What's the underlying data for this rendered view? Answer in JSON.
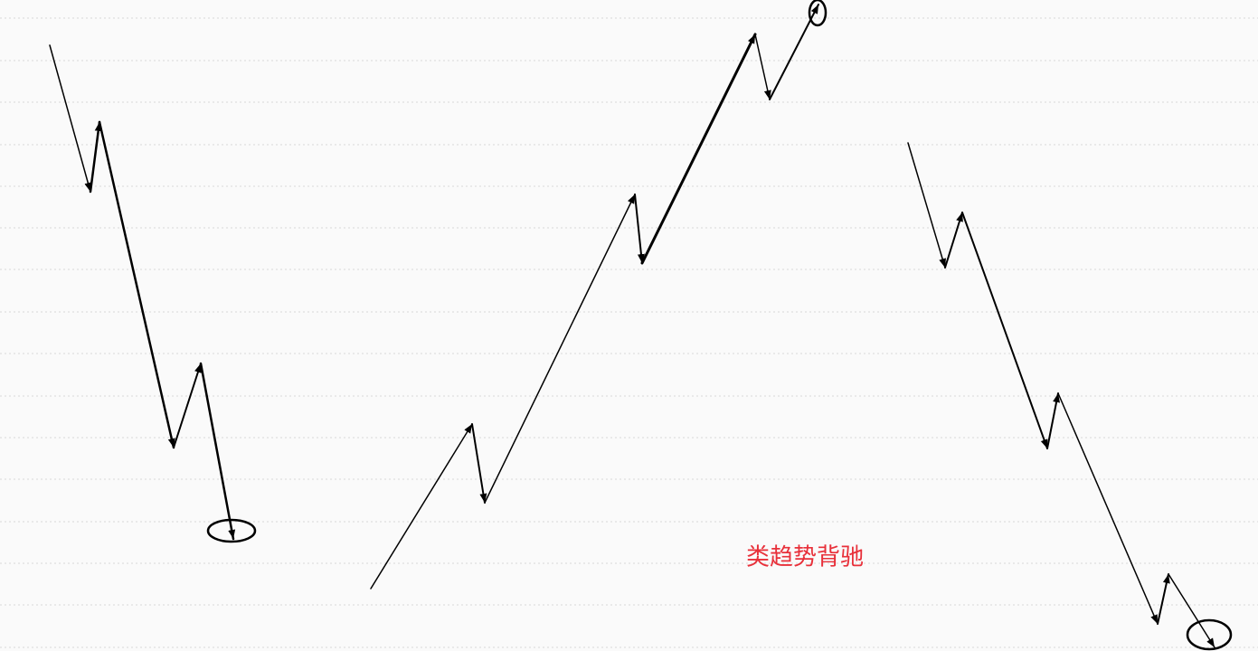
{
  "label": "类趋势背驰"
}
